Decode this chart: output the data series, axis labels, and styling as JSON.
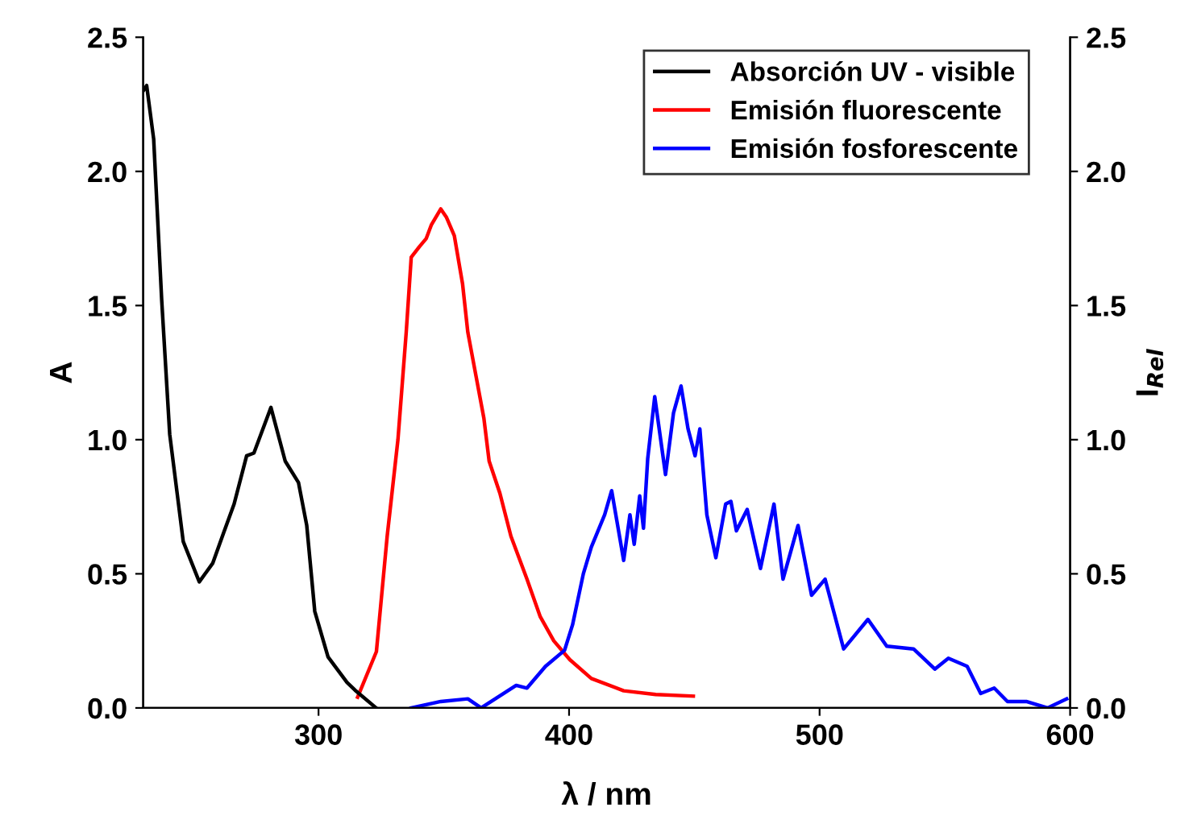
{
  "chart_data": {
    "type": "line",
    "xlabel": "λ / nm",
    "ylabel": "A",
    "y2label": "I$_{Rel}$",
    "xlim": [
      230,
      600
    ],
    "xticks": [
      300,
      400,
      500,
      600
    ],
    "ylim": [
      0,
      2.5
    ],
    "yticks": [
      {
        "value": 0,
        "label": "0.0"
      },
      {
        "value": 0.5,
        "label": "0.5"
      },
      {
        "value": 1,
        "label": "1.0"
      },
      {
        "value": 1.5,
        "label": "1.5"
      },
      {
        "value": 2,
        "label": "2.0"
      },
      {
        "value": 2.5,
        "label": "2.5"
      }
    ],
    "y2lim": [
      0,
      2.5
    ],
    "y2ticks": [
      {
        "value": 0,
        "label": "0.0"
      },
      {
        "value": 0.5,
        "label": "0.5"
      },
      {
        "value": 1,
        "label": "1.0"
      },
      {
        "value": 1.5,
        "label": "1.5"
      },
      {
        "value": 2,
        "label": "2.0"
      },
      {
        "value": 2.5,
        "label": "2.5"
      }
    ],
    "grid": false,
    "legend": "top right",
    "marker": "none",
    "line_style": "solid",
    "series": [
      {
        "name": "Absorción UV - visible",
        "color": "#000000",
        "x": [
          230,
          231.4,
          234.2,
          237.4,
          240.6,
          246,
          252.4,
          257.8,
          262,
          266.3,
          271.3,
          274.2,
          281,
          286.7,
          292,
          295.3,
          298.5,
          303.8,
          311.4,
          314.6,
          323
        ],
        "values": [
          2.3,
          2.32,
          2.12,
          1.52,
          1.02,
          0.62,
          0.47,
          0.54,
          0.65,
          0.76,
          0.94,
          0.95,
          1.12,
          0.92,
          0.84,
          0.68,
          0.36,
          0.19,
          0.095,
          0.066,
          0
        ]
      },
      {
        "name": "Emisión fluorescente",
        "color": "#ff0000",
        "axis": "y2",
        "x": [
          315.6,
          323.1,
          327.4,
          331.7,
          335,
          337,
          340.3,
          343,
          345,
          348.8,
          351,
          354.2,
          357.5,
          359.6,
          362.8,
          366,
          368.1,
          372.4,
          376.8,
          383.2,
          388.5,
          393.9,
          400.3,
          408.9,
          421.8,
          434.6,
          449.6
        ],
        "values": [
          0.04,
          0.21,
          0.64,
          1.0,
          1.4,
          1.68,
          1.72,
          1.75,
          1.8,
          1.86,
          1.83,
          1.76,
          1.58,
          1.4,
          1.24,
          1.08,
          0.92,
          0.8,
          0.64,
          0.48,
          0.34,
          0.25,
          0.18,
          0.11,
          0.064,
          0.05,
          0.044
        ]
      },
      {
        "name": "Emisión fosforescente",
        "color": "#0000ff",
        "axis": "y2",
        "x": [
          337,
          348.8,
          359.6,
          364.9,
          378.9,
          383.2,
          390.6,
          398.2,
          401.4,
          405.7,
          408.9,
          414.2,
          417,
          421.8,
          424.3,
          426,
          428.2,
          429.7,
          431.4,
          434.2,
          438.5,
          441.7,
          444.7,
          447.5,
          450.3,
          452.2,
          455,
          458.6,
          462.5,
          464.6,
          466.8,
          471.1,
          476.4,
          481.8,
          485.4,
          491.4,
          496.8,
          502.2,
          509.6,
          519.3,
          526.8,
          537.5,
          546,
          551.4,
          558.9,
          564.3,
          569.7,
          575,
          582.5,
          591,
          598.6
        ],
        "values": [
          0,
          0.024,
          0.034,
          0,
          0.084,
          0.074,
          0.155,
          0.215,
          0.31,
          0.5,
          0.6,
          0.72,
          0.81,
          0.55,
          0.72,
          0.61,
          0.79,
          0.67,
          0.93,
          1.16,
          0.87,
          1.1,
          1.2,
          1.04,
          0.94,
          1.04,
          0.72,
          0.56,
          0.76,
          0.77,
          0.66,
          0.74,
          0.52,
          0.76,
          0.48,
          0.68,
          0.42,
          0.48,
          0.22,
          0.33,
          0.23,
          0.22,
          0.145,
          0.185,
          0.155,
          0.054,
          0.074,
          0.024,
          0.024,
          0,
          0.034
        ]
      }
    ]
  }
}
